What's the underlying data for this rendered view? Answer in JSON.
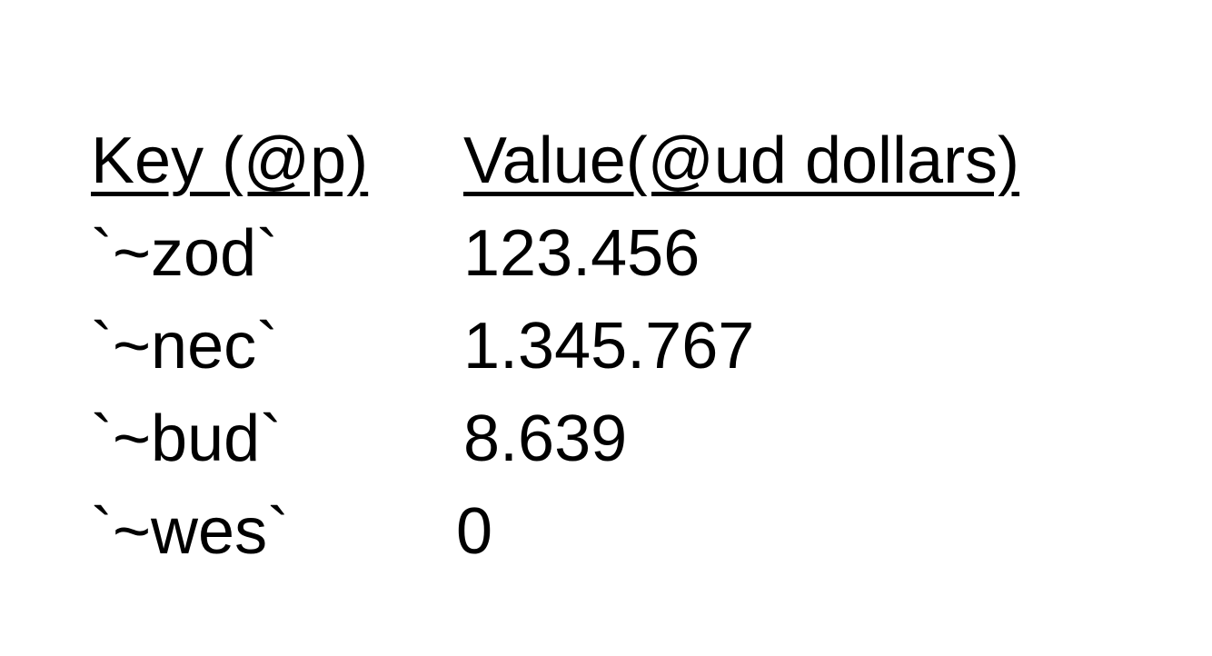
{
  "table": {
    "headers": {
      "key": "Key (@p)",
      "value": "Value(@ud dollars)"
    },
    "rows": [
      {
        "key": "`~zod`",
        "value": "123.456"
      },
      {
        "key": "`~nec`",
        "value": "1.345.767"
      },
      {
        "key": "`~bud`",
        "value": "8.639"
      },
      {
        "key": "`~wes`",
        "value": "0"
      }
    ]
  }
}
